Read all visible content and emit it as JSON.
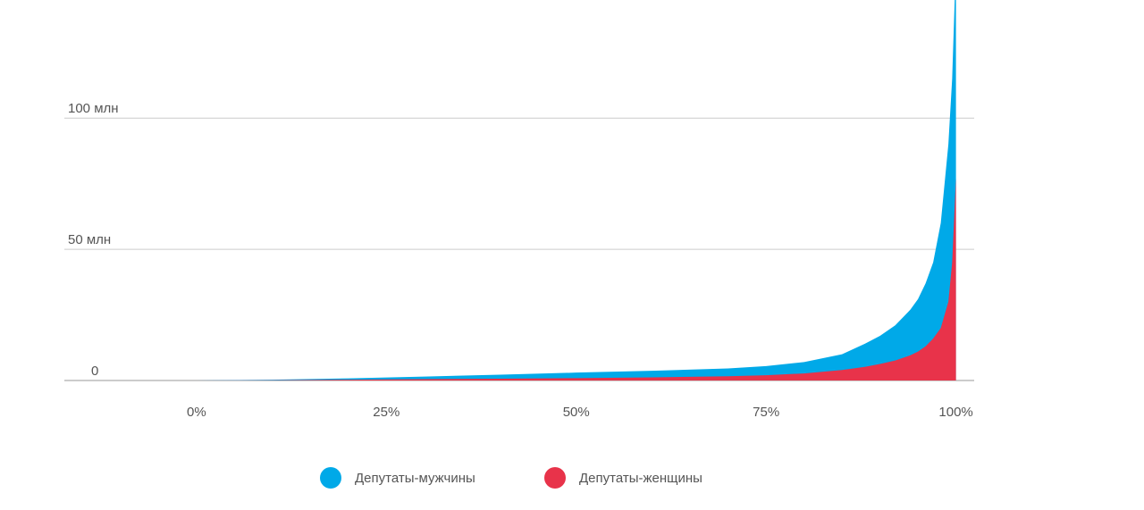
{
  "chart_data": {
    "type": "area",
    "x": [
      0,
      10,
      20,
      30,
      40,
      50,
      60,
      70,
      75,
      80,
      85,
      88,
      90,
      92,
      94,
      95,
      96,
      97,
      98,
      99,
      99.5,
      100
    ],
    "series": [
      {
        "name": "Депутаты-мужчины",
        "color": "#00a9e8",
        "values": [
          0,
          0.3,
          0.8,
          1.5,
          2.2,
          3,
          3.7,
          4.6,
          5.5,
          7,
          10,
          14,
          17,
          21,
          27,
          31,
          37,
          45,
          60,
          90,
          115,
          160
        ]
      },
      {
        "name": "Депутаты-женщины",
        "color": "#e8334a",
        "values": [
          0,
          0.1,
          0.3,
          0.5,
          0.7,
          0.9,
          1.2,
          1.6,
          2,
          2.7,
          4,
          5.2,
          6.3,
          7.6,
          9.6,
          11,
          13,
          16,
          20,
          30,
          45,
          77
        ]
      }
    ],
    "xlim": [
      -17.4,
      102.4
    ],
    "xticks": [
      {
        "value": 0,
        "label": "0%"
      },
      {
        "value": 25,
        "label": "25%"
      },
      {
        "value": 50,
        "label": "50%"
      },
      {
        "value": 75,
        "label": "75%"
      },
      {
        "value": 100,
        "label": "100%"
      }
    ],
    "ylim": [
      0,
      145
    ],
    "yticks": [
      0,
      {
        "value": 50,
        "label": "50 млн"
      },
      {
        "value": 100,
        "label": "100 млн"
      }
    ],
    "grid": true,
    "legend": "bottom"
  }
}
